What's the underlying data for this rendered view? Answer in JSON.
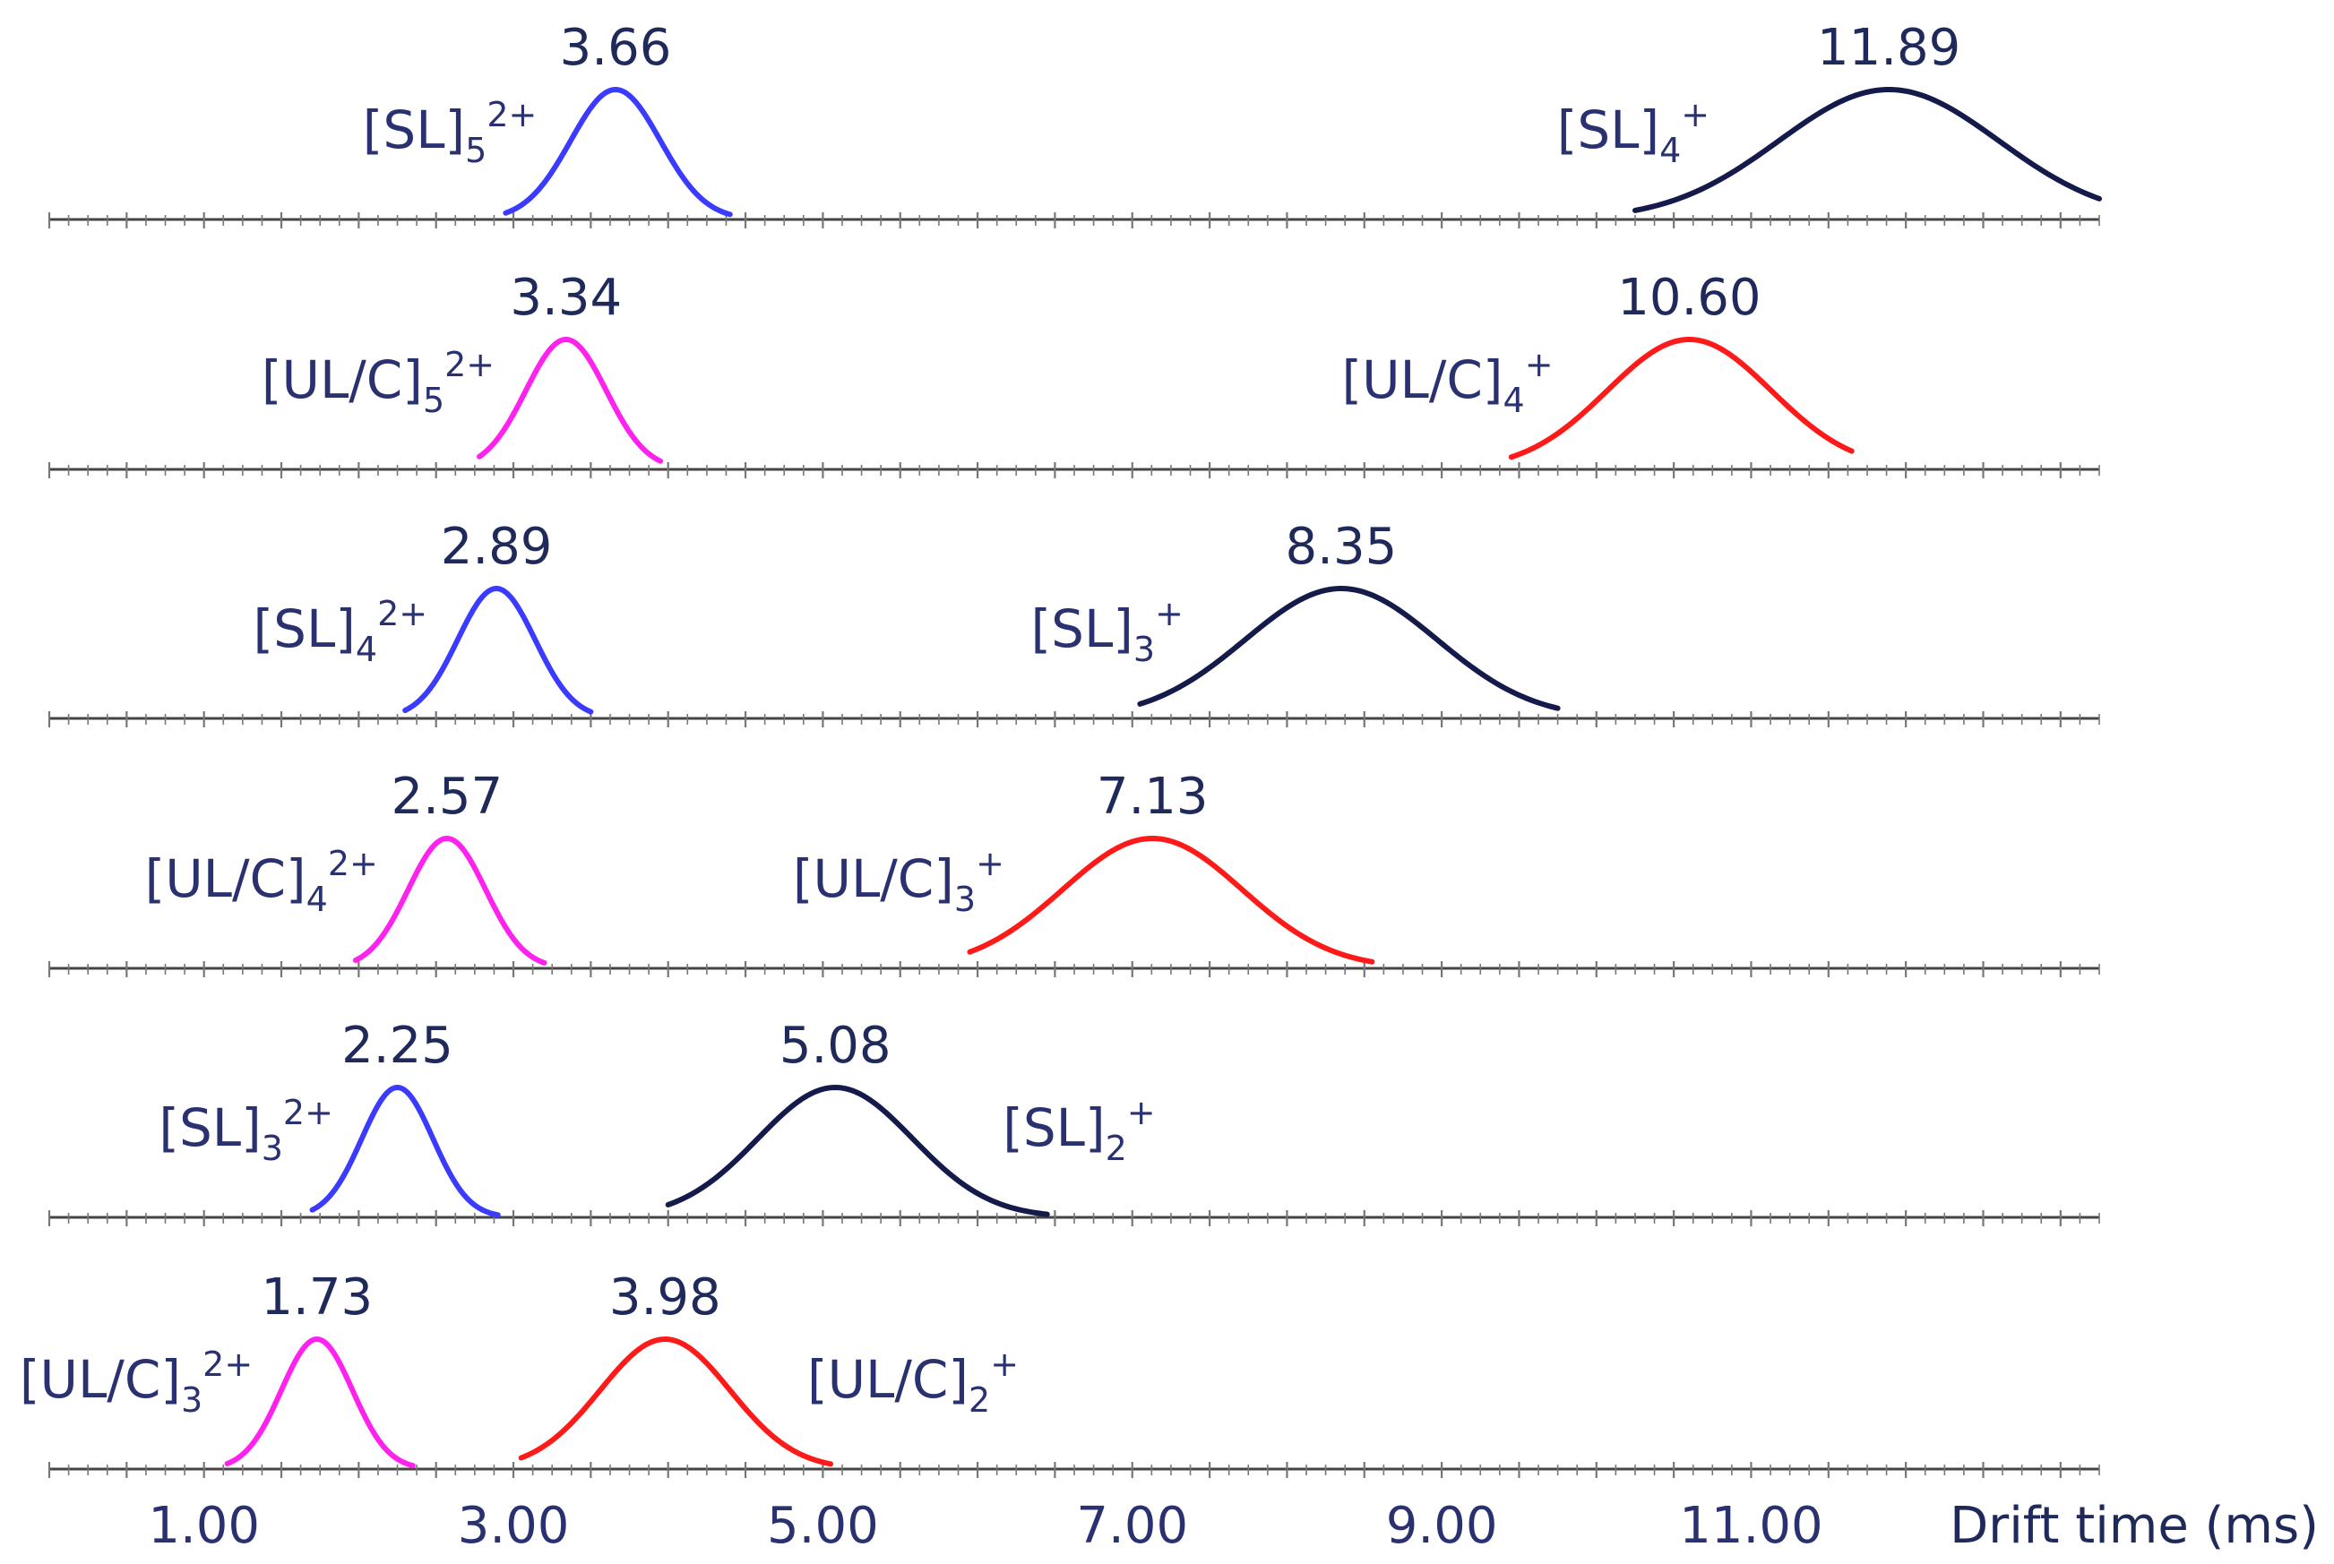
{
  "chart_data": {
    "type": "line",
    "title": "",
    "xlabel": "Drift time (ms)",
    "ylabel": "",
    "xlim": [
      0.0,
      13.25
    ],
    "x_ticks": [
      "1.00",
      "3.00",
      "5.00",
      "7.00",
      "9.00",
      "11.00"
    ],
    "x_tick_values": [
      1,
      3,
      5,
      7,
      9,
      11
    ],
    "colors": {
      "SL_2plus": "#3b3bff",
      "SL_plus": "#141a4a",
      "ULC_2plus": "#ff22ee",
      "ULC_plus": "#ff1a1a",
      "axis": "#444444",
      "text": "#2a3170"
    },
    "rows": [
      {
        "peaks": [
          {
            "label_main": "[SL]",
            "label_sub": "5",
            "label_sup": "2+",
            "center": 3.66,
            "value_label": "3.66",
            "sigma": 0.29,
            "range": [
              2.95,
              4.4
            ],
            "color_key": "SL_2plus",
            "label_side": "left"
          },
          {
            "label_main": "[SL]",
            "label_sub": "4",
            "label_sup": "+",
            "center": 11.89,
            "value_label": "11.89",
            "sigma": 0.71,
            "range": [
              10.25,
              13.25
            ],
            "color_key": "SL_plus",
            "label_side": "left"
          }
        ]
      },
      {
        "peaks": [
          {
            "label_main": "[UL/C]",
            "label_sub": "5",
            "label_sup": "2+",
            "center": 3.34,
            "value_label": "3.34",
            "sigma": 0.26,
            "range": [
              2.78,
              3.95
            ],
            "color_key": "ULC_2plus",
            "label_side": "left"
          },
          {
            "label_main": "[UL/C]",
            "label_sub": "4",
            "label_sup": "+",
            "center": 10.6,
            "value_label": "10.60",
            "sigma": 0.53,
            "range": [
              9.45,
              11.65
            ],
            "color_key": "ULC_plus",
            "label_side": "left"
          }
        ]
      },
      {
        "peaks": [
          {
            "label_main": "[SL]",
            "label_sub": "4",
            "label_sup": "2+",
            "center": 2.89,
            "value_label": "2.89",
            "sigma": 0.25,
            "range": [
              2.3,
              3.5
            ],
            "color_key": "SL_2plus",
            "label_side": "left"
          },
          {
            "label_main": "[SL]",
            "label_sub": "3",
            "label_sup": "+",
            "center": 8.35,
            "value_label": "8.35",
            "sigma": 0.62,
            "range": [
              7.05,
              9.75
            ],
            "color_key": "SL_plus",
            "label_side": "left"
          }
        ]
      },
      {
        "peaks": [
          {
            "label_main": "[UL/C]",
            "label_sub": "4",
            "label_sup": "2+",
            "center": 2.57,
            "value_label": "2.57",
            "sigma": 0.25,
            "range": [
              1.98,
              3.2
            ],
            "color_key": "ULC_2plus",
            "label_side": "left"
          },
          {
            "label_main": "[UL/C]",
            "label_sub": "3",
            "label_sup": "+",
            "center": 7.13,
            "value_label": "7.13",
            "sigma": 0.58,
            "range": [
              5.95,
              8.55
            ],
            "color_key": "ULC_plus",
            "label_side": "left"
          }
        ]
      },
      {
        "peaks": [
          {
            "label_main": "[SL]",
            "label_sub": "3",
            "label_sup": "2+",
            "center": 2.25,
            "value_label": "2.25",
            "sigma": 0.23,
            "range": [
              1.7,
              2.9
            ],
            "color_key": "SL_2plus",
            "label_side": "left"
          },
          {
            "label_main": "[SL]",
            "label_sub": "2",
            "label_sup": "+",
            "center": 5.08,
            "value_label": "5.08",
            "sigma": 0.5,
            "range": [
              4.0,
              6.45
            ],
            "color_key": "SL_plus",
            "label_side": "right"
          }
        ]
      },
      {
        "peaks": [
          {
            "label_main": "[UL/C]",
            "label_sub": "3",
            "label_sup": "2+",
            "center": 1.73,
            "value_label": "1.73",
            "sigma": 0.23,
            "range": [
              1.15,
              2.35
            ],
            "color_key": "ULC_2plus",
            "label_side": "left"
          },
          {
            "label_main": "[UL/C]",
            "label_sub": "2",
            "label_sup": "+",
            "center": 3.98,
            "value_label": "3.98",
            "sigma": 0.42,
            "range": [
              3.05,
              5.05
            ],
            "color_key": "ULC_plus",
            "label_side": "right"
          }
        ]
      }
    ]
  }
}
